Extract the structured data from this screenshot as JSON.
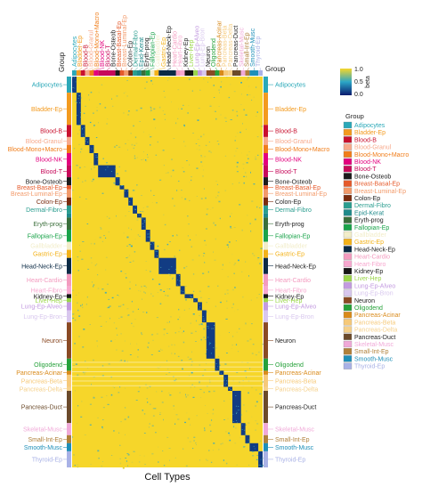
{
  "chart_data": {
    "type": "heatmap",
    "title": "",
    "xlabel": "Cell Types",
    "ylabel": "",
    "group_label_left": "Group",
    "group_label_right": "Group",
    "colorbar": {
      "label": "beta",
      "ticks": [
        "1.0",
        "0.5",
        "0.0"
      ],
      "min": 0.0,
      "max": 1.0,
      "high_color": "#f6d62a",
      "mid_color": "#2ba6c7",
      "low_color": "#0a1b6e"
    },
    "background_value": 0.9,
    "legend": {
      "title": "Group",
      "entries": [
        {
          "name": "Adipocytes",
          "color": "#2aa8b8"
        },
        {
          "name": "Bladder-Ep",
          "color": "#f39a1e"
        },
        {
          "name": "Blood-B",
          "color": "#c8102e"
        },
        {
          "name": "Blood-Granul",
          "color": "#f7a98b"
        },
        {
          "name": "Blood-Mono+Macro",
          "color": "#f07d1a"
        },
        {
          "name": "Blood-NK",
          "color": "#e3007e"
        },
        {
          "name": "Blood-T",
          "color": "#c70a5a"
        },
        {
          "name": "Bone-Osteob",
          "color": "#1b1b1b"
        },
        {
          "name": "Breast-Basal-Ep",
          "color": "#e55a2b"
        },
        {
          "name": "Breast-Luminal-Ep",
          "color": "#f29a6a"
        },
        {
          "name": "Colon-Ep",
          "color": "#7a2c0e"
        },
        {
          "name": "Dermal-Fibro",
          "color": "#2a9d8f"
        },
        {
          "name": "Epid-Kerat",
          "color": "#1f8a8a"
        },
        {
          "name": "Eryth-prog",
          "color": "#3a6e3a"
        },
        {
          "name": "Fallopian-Ep",
          "color": "#1aa34a"
        },
        {
          "name": "Gallbladder",
          "color": "#f2edc9"
        },
        {
          "name": "Gastric-Ep",
          "color": "#f3b21a"
        },
        {
          "name": "Head-Neck-Ep",
          "color": "#0b2a45"
        },
        {
          "name": "Heart-Cardio",
          "color": "#f39bbf"
        },
        {
          "name": "Heart-Fibro",
          "color": "#f7a8cf"
        },
        {
          "name": "Kidney-Ep",
          "color": "#151515"
        },
        {
          "name": "Liver-Hep",
          "color": "#9bd64a"
        },
        {
          "name": "Lung-Ep-Alveo",
          "color": "#c39be0"
        },
        {
          "name": "Lung-Ep-Bron",
          "color": "#d8c7ee"
        },
        {
          "name": "Neuron",
          "color": "#8a4a24"
        },
        {
          "name": "Oligodend",
          "color": "#26a13a"
        },
        {
          "name": "Pancreas-Acinar",
          "color": "#d98a1a"
        },
        {
          "name": "Pancreas-Beta",
          "color": "#f6c979"
        },
        {
          "name": "Pancreas-Delta",
          "color": "#f5d08a"
        },
        {
          "name": "Pancreas-Duct",
          "color": "#6b4a2a"
        },
        {
          "name": "Skeletal-Musc",
          "color": "#f0a9d8"
        },
        {
          "name": "Small-Int-Ep",
          "color": "#b0803a"
        },
        {
          "name": "Smooth-Musc",
          "color": "#1e8fb8"
        },
        {
          "name": "Thyroid-Ep",
          "color": "#a9b2e6"
        }
      ]
    },
    "rows": [
      {
        "group": "Adipocytes",
        "labeled": true,
        "weight": 4
      },
      {
        "group": "Bladder-Ep",
        "labeled": true,
        "weight": 8
      },
      {
        "group": "Blood-B",
        "labeled": true,
        "weight": 3
      },
      {
        "group": "Blood-Granul",
        "labeled": true,
        "weight": 2
      },
      {
        "group": "Blood-Mono+Macro",
        "labeled": true,
        "weight": 2
      },
      {
        "group": "Blood-NK",
        "labeled": true,
        "weight": 3
      },
      {
        "group": "Blood-T",
        "labeled": true,
        "weight": 3
      },
      {
        "group": "Bone-Osteob",
        "labeled": true,
        "weight": 2
      },
      {
        "group": "Breast-Basal-Ep",
        "labeled": true,
        "weight": 1
      },
      {
        "group": "Breast-Luminal-Ep",
        "labeled": true,
        "weight": 2
      },
      {
        "group": "Colon-Ep",
        "labeled": true,
        "weight": 2
      },
      {
        "group": "Dermal-Fibro",
        "labeled": true,
        "weight": 2
      },
      {
        "group": "Epid-Kerat",
        "labeled": false,
        "weight": 1
      },
      {
        "group": "Eryth-prog",
        "labeled": true,
        "weight": 3
      },
      {
        "group": "Fallopian-Ep",
        "labeled": true,
        "weight": 3
      },
      {
        "group": "Gallbladder",
        "labeled": true,
        "weight": 2
      },
      {
        "group": "Gastric-Ep",
        "labeled": true,
        "weight": 2
      },
      {
        "group": "Head-Neck-Ep",
        "labeled": true,
        "weight": 4
      },
      {
        "group": "Heart-Cardio",
        "labeled": true,
        "weight": 3
      },
      {
        "group": "Heart-Fibro",
        "labeled": true,
        "weight": 2
      },
      {
        "group": "Kidney-Ep",
        "labeled": true,
        "weight": 1
      },
      {
        "group": "Liver-Hep",
        "labeled": true,
        "weight": 1
      },
      {
        "group": "Lung-Ep-Alveo",
        "labeled": true,
        "weight": 2
      },
      {
        "group": "Lung-Ep-Bron",
        "labeled": true,
        "weight": 3
      },
      {
        "group": "Neuron",
        "labeled": true,
        "weight": 9
      },
      {
        "group": "Oligodend",
        "labeled": true,
        "weight": 3
      },
      {
        "group": "Pancreas-Acinar",
        "labeled": true,
        "weight": 1
      },
      {
        "group": "Pancreas-Beta",
        "labeled": true,
        "weight": 3
      },
      {
        "group": "Pancreas-Delta",
        "labeled": true,
        "weight": 1
      },
      {
        "group": "Pancreas-Duct",
        "labeled": true,
        "weight": 8
      },
      {
        "group": "Skeletal-Musc",
        "labeled": true,
        "weight": 3
      },
      {
        "group": "Small-Int-Ep",
        "labeled": true,
        "weight": 2
      },
      {
        "group": "Smooth-Musc",
        "labeled": true,
        "weight": 2
      },
      {
        "group": "Thyroid-Ep",
        "labeled": true,
        "weight": 4
      }
    ],
    "columns": [
      {
        "group": "Adipocytes",
        "labeled": true,
        "weight": 1
      },
      {
        "group": "Bladder-Ep",
        "labeled": true,
        "weight": 1
      },
      {
        "group": "Blood-B",
        "labeled": true,
        "weight": 1
      },
      {
        "group": "Blood-Granul",
        "labeled": true,
        "weight": 1
      },
      {
        "group": "Blood-Mono+Macro",
        "labeled": true,
        "weight": 1
      },
      {
        "group": "Blood-NK",
        "labeled": true,
        "weight": 1
      },
      {
        "group": "Blood-T",
        "labeled": true,
        "weight": 4
      },
      {
        "group": "Bone-Osteob",
        "labeled": true,
        "weight": 1
      },
      {
        "group": "Breast-Basal-Ep",
        "labeled": true,
        "weight": 1
      },
      {
        "group": "Breast-Luminal-Ep",
        "labeled": true,
        "weight": 1
      },
      {
        "group": "Colon-Ep",
        "labeled": true,
        "weight": 1
      },
      {
        "group": "Dermal-Fibro",
        "labeled": true,
        "weight": 1
      },
      {
        "group": "Epid-Kerat",
        "labeled": true,
        "weight": 1
      },
      {
        "group": "Eryth-prog",
        "labeled": true,
        "weight": 1
      },
      {
        "group": "Fallopian-Ep",
        "labeled": true,
        "weight": 1
      },
      {
        "group": "Gallbladder",
        "labeled": true,
        "weight": 1
      },
      {
        "group": "Gastric-Ep",
        "labeled": true,
        "weight": 1
      },
      {
        "group": "Head-Neck-Ep",
        "labeled": true,
        "weight": 4
      },
      {
        "group": "Heart-Cardio",
        "labeled": true,
        "weight": 1
      },
      {
        "group": "Heart-Fibro",
        "labeled": true,
        "weight": 1
      },
      {
        "group": "Kidney-Ep",
        "labeled": true,
        "weight": 2
      },
      {
        "group": "Liver-Hep",
        "labeled": true,
        "weight": 1
      },
      {
        "group": "Lung-Ep-Alveo",
        "labeled": true,
        "weight": 1
      },
      {
        "group": "Lung-Ep-Bron",
        "labeled": true,
        "weight": 1
      },
      {
        "group": "Neuron",
        "labeled": true,
        "weight": 2
      },
      {
        "group": "Oligodend",
        "labeled": true,
        "weight": 1
      },
      {
        "group": "Pancreas-Acinar",
        "labeled": true,
        "weight": 1
      },
      {
        "group": "Pancreas-Beta",
        "labeled": true,
        "weight": 1
      },
      {
        "group": "Pancreas-Delta",
        "labeled": true,
        "weight": 1
      },
      {
        "group": "Pancreas-Duct",
        "labeled": true,
        "weight": 2
      },
      {
        "group": "Skeletal-Musc",
        "labeled": true,
        "weight": 1
      },
      {
        "group": "Small-Int-Ep",
        "labeled": true,
        "weight": 1
      },
      {
        "group": "Smooth-Musc",
        "labeled": true,
        "weight": 2
      },
      {
        "group": "Thyroid-Ep",
        "labeled": true,
        "weight": 1
      }
    ]
  }
}
